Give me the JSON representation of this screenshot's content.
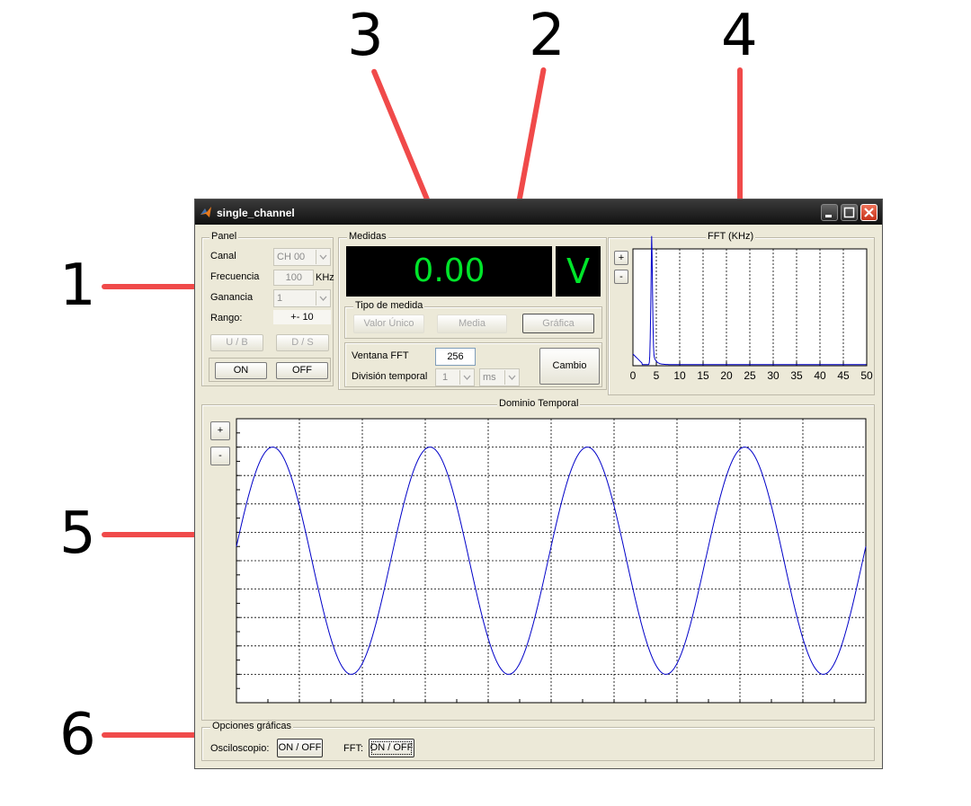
{
  "callouts": [
    "1",
    "2",
    "3",
    "4",
    "5",
    "6"
  ],
  "window": {
    "title": "single_channel"
  },
  "panel": {
    "legend": "Panel",
    "canal_label": "Canal",
    "canal_value": "CH 00",
    "frecuencia_label": "Frecuencia",
    "frecuencia_value": "100",
    "frecuencia_unit": "KHz",
    "ganancia_label": "Ganancia",
    "ganancia_value": "1",
    "rango_label": "Rango:",
    "rango_value": "+- 10",
    "ub_label": "U / B",
    "ds_label": "D / S",
    "on_label": "ON",
    "off_label": "OFF"
  },
  "medidas": {
    "legend": "Medidas",
    "value": "0.00",
    "unit": "V",
    "tipo_legend": "Tipo de medida",
    "valor_unico": "Valor Único",
    "media": "Media",
    "grafica": "Gráfica",
    "ventana_label": "Ventana FFT",
    "ventana_value": "256",
    "division_label": "División temporal",
    "division_value": "1",
    "division_unit": "ms",
    "cambio_label": "Cambio"
  },
  "fft": {
    "legend": "FFT (KHz)",
    "plus": "+",
    "minus": "-"
  },
  "dominio": {
    "legend": "Dominio Temporal",
    "plus": "+",
    "minus": "-"
  },
  "opciones": {
    "legend": "Opciones gráficas",
    "osc_label": "Osciloscopio:",
    "osc_button": "ON / OFF",
    "fft_label": "FFT:",
    "fft_button": "ON / OFF"
  },
  "chart_data": [
    {
      "type": "line",
      "title": "FFT (KHz)",
      "x_ticks": [
        0,
        5,
        10,
        15,
        20,
        25,
        30,
        35,
        40,
        45,
        50
      ],
      "xlim": [
        0,
        50
      ],
      "grid": "vertical dashed",
      "series_color": "#0000c8",
      "peak_x": 4,
      "peak_y": 0.95
    },
    {
      "type": "line",
      "title": "Dominio Temporal",
      "waveform": "sine",
      "cycles": 4,
      "amplitude": 0.8,
      "grid": "dashed",
      "series_color": "#0000c8"
    }
  ]
}
